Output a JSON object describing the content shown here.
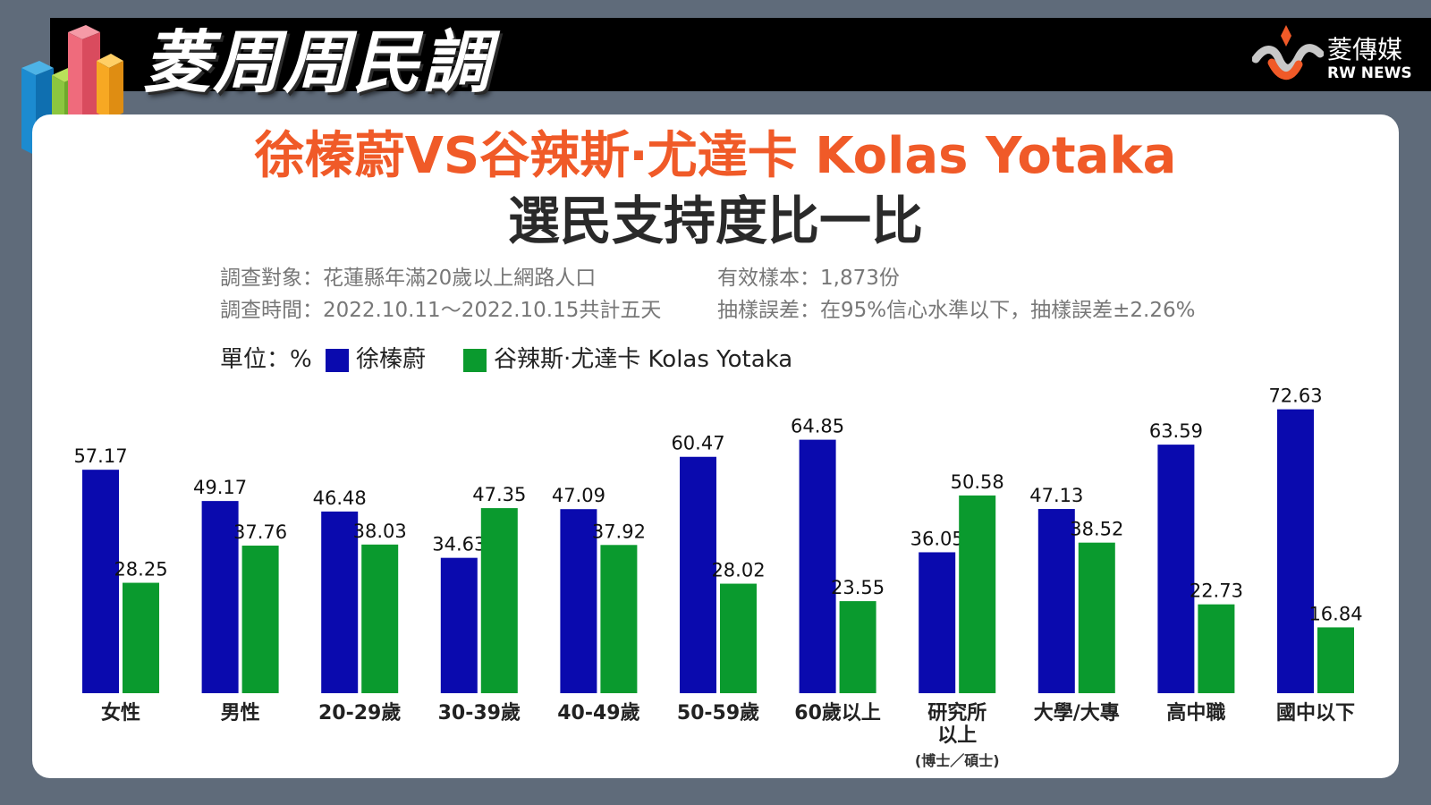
{
  "header": {
    "brand_title": "菱周周民調",
    "logo_name": "菱傳媒",
    "logo_en": "RW NEWS"
  },
  "title": {
    "line1": "徐榛蔚VS谷辣斯‧尤達卡 Kolas Yotaka",
    "line2": "選民支持度比一比"
  },
  "survey": {
    "target": "調查對象：花蓮縣年滿20歲以上網路人口",
    "period": "調查時間：2022.10.11～2022.10.15共計五天",
    "sample": "有效樣本：1,873份",
    "error": "抽樣誤差：在95%信心水準以下，抽樣誤差±2.26%"
  },
  "legend": {
    "unit": "單位：%"
  },
  "colors": {
    "series1": "#0a0aae",
    "series2": "#0a9a2e",
    "title_orange": "#f05a28"
  },
  "chart_data": {
    "type": "bar",
    "categories": [
      "女性",
      "男性",
      "20-29歲",
      "30-39歲",
      "40-49歲",
      "50-59歲",
      "60歲以上",
      "研究所\n以上",
      "大學/大專",
      "高中職",
      "國中以下"
    ],
    "category_notes": [
      "",
      "",
      "",
      "",
      "",
      "",
      "",
      "(博士／碩士)",
      "",
      "",
      ""
    ],
    "series": [
      {
        "name": "徐榛蔚",
        "values": [
          57.17,
          49.17,
          46.48,
          34.63,
          47.09,
          60.47,
          64.85,
          36.05,
          47.13,
          63.59,
          72.63
        ]
      },
      {
        "name": "谷辣斯‧尤達卡 Kolas Yotaka",
        "values": [
          28.25,
          37.76,
          38.03,
          47.35,
          37.92,
          28.02,
          23.55,
          50.58,
          38.52,
          22.73,
          16.84
        ]
      }
    ],
    "ylim": [
      0,
      80
    ],
    "grid": false,
    "legend_position": "top-left",
    "data_labels": true
  }
}
